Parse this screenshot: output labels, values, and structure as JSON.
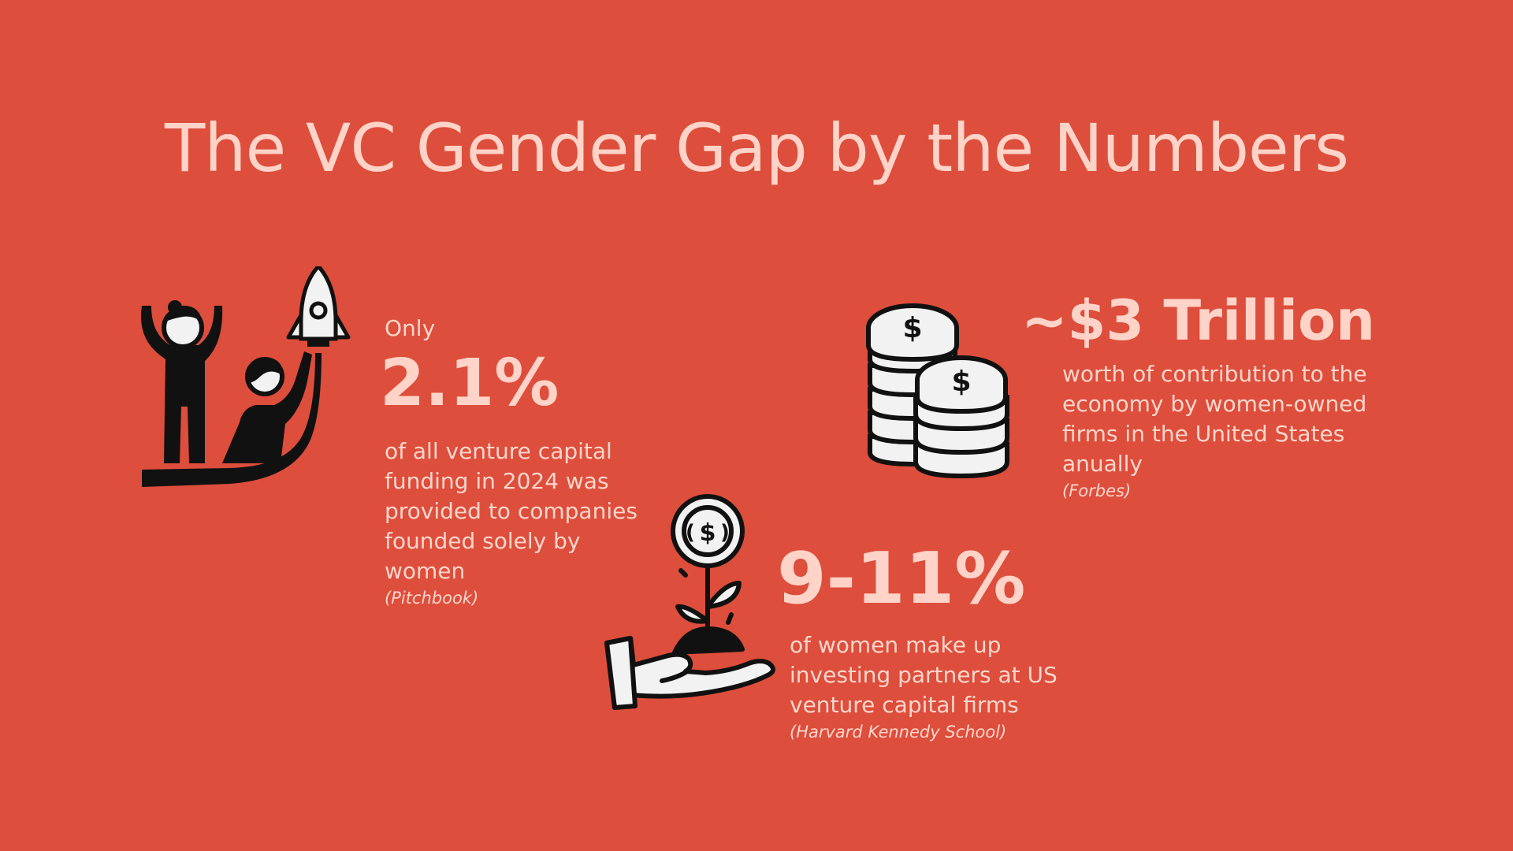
{
  "title": "The VC Gender Gap by the Numbers",
  "stats": [
    {
      "prefix": "Only",
      "value": "2.1%",
      "description": "of all venture capital funding in 2024 was provided to companies founded solely by women",
      "source": "(Pitchbook)",
      "icon": "women-founders-rocket-icon"
    },
    {
      "value": "~$3 Trillion",
      "description": "worth of contribution to the economy by women-owned firms in the United States anually",
      "source": "(Forbes)",
      "icon": "coin-stacks-icon"
    },
    {
      "value": "9-11%",
      "description": "of women make up investing partners at US venture capital firms",
      "source": "(Harvard Kennedy School)",
      "icon": "hand-growing-money-plant-icon"
    }
  ],
  "colors": {
    "background": "#DD4E3C",
    "text": "#FFD3C8",
    "icon_dark": "#111111",
    "icon_light": "#F2F2F2"
  }
}
